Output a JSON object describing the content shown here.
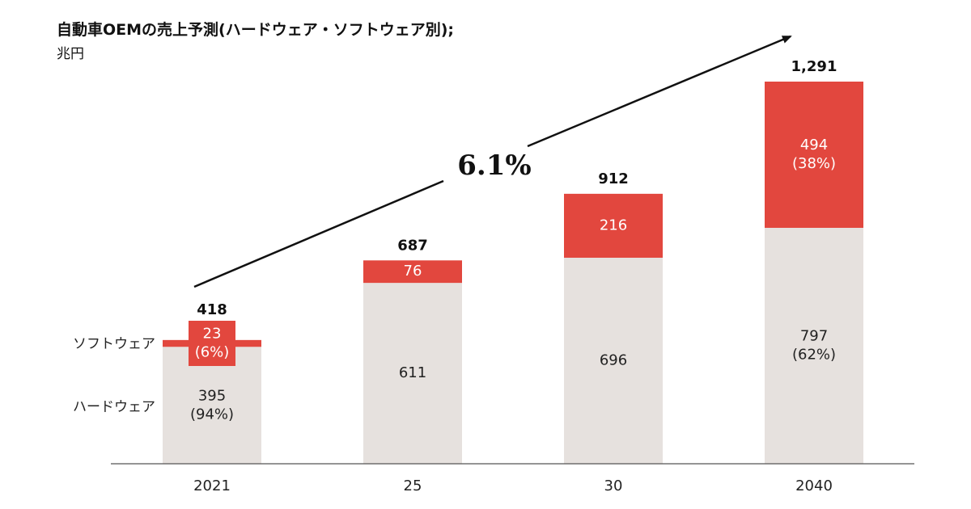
{
  "chart_data": {
    "type": "bar",
    "stacked": true,
    "title": "自動車OEMの売上予測(ハードウェア・ソフトウェア別);",
    "unit": "兆円",
    "categories": [
      "2021",
      "25",
      "30",
      "2040"
    ],
    "series": [
      {
        "name": "ハードウェア",
        "values": [
          395,
          611,
          696,
          797
        ],
        "labels": [
          [
            "395",
            "(94%)"
          ],
          [
            "611"
          ],
          [
            "696"
          ],
          [
            "797",
            "(62%)"
          ]
        ],
        "color": "#e6e1de",
        "label_color": "#222222"
      },
      {
        "name": "ソフトウェア",
        "values": [
          23,
          76,
          216,
          494
        ],
        "labels": [
          [
            "23",
            "(6%)"
          ],
          [
            "76"
          ],
          [
            "216"
          ],
          [
            "494",
            "(38%)"
          ]
        ],
        "color": "#e2473e",
        "label_color": "#ffffff"
      }
    ],
    "totals": [
      "418",
      "687",
      "912",
      "1,291"
    ],
    "annotation": "6.1%",
    "legend": [
      "ソフトウェア",
      "ハードウェア"
    ],
    "ylim": [
      0,
      1291
    ],
    "grid": false
  }
}
